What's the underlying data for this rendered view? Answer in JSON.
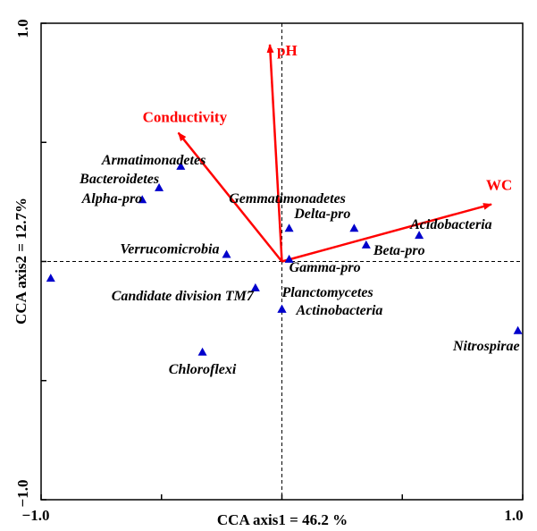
{
  "chart_data": {
    "type": "scatter",
    "xlabel": "CCA axis1 = 46.2 %",
    "ylabel": "CCA axis2 = 12.7%",
    "xlim": [
      -1.0,
      1.0
    ],
    "ylim": [
      -1.0,
      1.0
    ],
    "x_tick_labels": [
      "−1.0",
      "1.0"
    ],
    "y_tick_labels": [
      "−1.0",
      "1.0"
    ],
    "zero_lines": "dashed",
    "point_color": "#0000cc",
    "vector_color": "#ff0000",
    "points": [
      {
        "label": "Armatimonadetes",
        "x": -0.42,
        "y": 0.4
      },
      {
        "label": "Bacteroidetes",
        "x": -0.51,
        "y": 0.31
      },
      {
        "label": "Alpha-pro",
        "x": -0.58,
        "y": 0.26
      },
      {
        "label": "Verrucomicrobia",
        "x": -0.23,
        "y": 0.03
      },
      {
        "label": "",
        "x": -0.96,
        "y": -0.07
      },
      {
        "label": "Candidate division TM7",
        "x": -0.11,
        "y": -0.11
      },
      {
        "label": "Chloroflexi",
        "x": -0.33,
        "y": -0.38
      },
      {
        "label": "Gemmatimonadetes",
        "x": 0.03,
        "y": 0.14
      },
      {
        "label": "Delta-pro",
        "x": 0.3,
        "y": 0.14
      },
      {
        "label": "Acidobacteria",
        "x": 0.57,
        "y": 0.11
      },
      {
        "label": "Beta-pro",
        "x": 0.35,
        "y": 0.07
      },
      {
        "label": "Gamma-pro",
        "x": 0.03,
        "y": 0.01
      },
      {
        "label": "Planctomycetes",
        "x": 0.0,
        "y": -0.2
      },
      {
        "label": "Actinobacteria",
        "x": 0.0,
        "y": -0.2
      },
      {
        "label": "Nitrospirae",
        "x": 0.98,
        "y": -0.29
      }
    ],
    "vectors": [
      {
        "label": "pH",
        "x": -0.05,
        "y": 0.91
      },
      {
        "label": "Conductivity",
        "x": -0.43,
        "y": 0.54
      },
      {
        "label": "WC",
        "x": 0.87,
        "y": 0.24
      }
    ]
  }
}
